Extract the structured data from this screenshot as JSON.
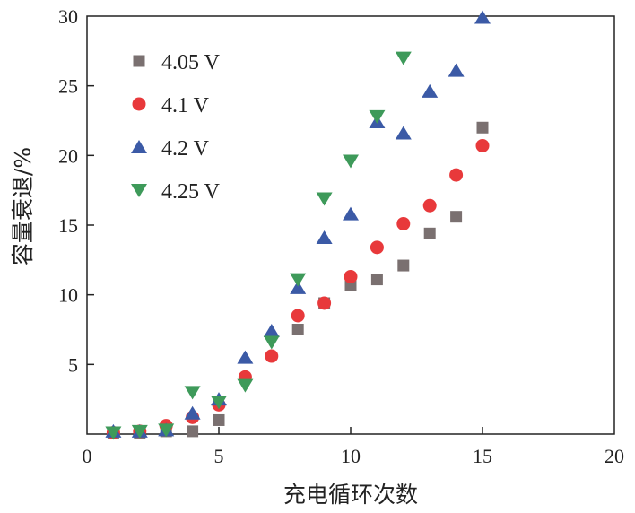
{
  "chart_data": {
    "type": "scatter",
    "title": "",
    "xlabel": "充电循环次数",
    "ylabel": "容量衰退/%",
    "xlim": [
      0,
      20
    ],
    "ylim": [
      0,
      30
    ],
    "xticks": [
      "0",
      "5",
      "10",
      "15",
      "20"
    ],
    "yticks": [
      "5",
      "10",
      "15",
      "20",
      "25",
      "30"
    ],
    "grid": false,
    "legend_position": "top-left",
    "series": [
      {
        "name": "4.05 V",
        "marker": "square",
        "color": "#7a7070",
        "x": [
          1,
          2,
          3,
          4,
          5,
          8,
          9,
          10,
          11,
          12,
          13,
          14,
          15
        ],
        "y": [
          0.1,
          0.1,
          0.2,
          0.2,
          1.0,
          7.5,
          9.4,
          10.7,
          11.1,
          12.1,
          14.4,
          15.6,
          22.0
        ]
      },
      {
        "name": "4.1 V",
        "marker": "circle",
        "color": "#e8393b",
        "x": [
          1,
          2,
          3,
          4,
          5,
          6,
          7,
          8,
          9,
          10,
          11,
          12,
          13,
          14,
          15
        ],
        "y": [
          0.1,
          0.2,
          0.6,
          1.2,
          2.1,
          4.1,
          5.6,
          8.5,
          9.4,
          11.3,
          13.4,
          15.1,
          16.4,
          18.6,
          20.7
        ]
      },
      {
        "name": "4.2 V",
        "marker": "triangle-up",
        "color": "#3b5aa6",
        "x": [
          1,
          2,
          3,
          4,
          5,
          6,
          7,
          8,
          9,
          10,
          11,
          12,
          13,
          14,
          15
        ],
        "y": [
          0.2,
          0.2,
          0.3,
          1.5,
          2.5,
          5.5,
          7.4,
          10.5,
          14.1,
          15.8,
          22.4,
          21.6,
          24.6,
          26.1,
          29.9
        ]
      },
      {
        "name": "4.25 V",
        "marker": "triangle-down",
        "color": "#3e9a5a",
        "x": [
          1,
          2,
          3,
          4,
          5,
          6,
          7,
          8,
          9,
          10,
          11,
          12
        ],
        "y": [
          0.1,
          0.2,
          0.3,
          3.0,
          2.3,
          3.5,
          6.6,
          11.1,
          16.9,
          19.6,
          22.8,
          27.0
        ]
      }
    ]
  }
}
